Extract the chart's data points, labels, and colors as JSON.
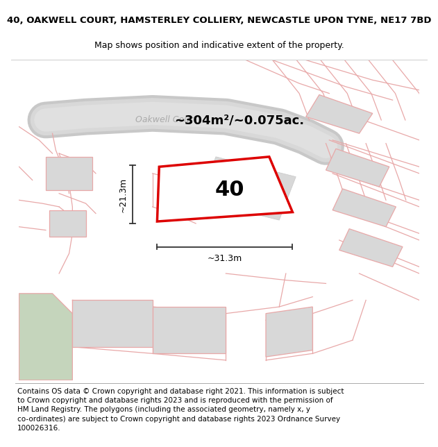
{
  "title": "40, OAKWELL COURT, HAMSTERLEY COLLIERY, NEWCASTLE UPON TYNE, NE17 7BD",
  "subtitle": "Map shows position and indicative extent of the property.",
  "area_label": "~304m²/~0.075ac.",
  "property_number": "40",
  "dim_width": "~31.3m",
  "dim_height": "~21.3m",
  "road_label": "Oakwell Court",
  "footer_text": "Contains OS data © Crown copyright and database right 2021. This information is subject to Crown copyright and database rights 2023 and is reproduced with the permission of HM Land Registry. The polygons (including the associated geometry, namely x, y co-ordinates) are subject to Crown copyright and database rights 2023 Ordnance Survey 100026316.",
  "bg_color": "#eeece8",
  "building_color": "#d8d8d8",
  "line_color": "#e8a8a8",
  "property_fill": "#ffffff",
  "property_edge": "#dd0000",
  "road_fill": "#d0d0d0",
  "road_stroke": "#c0c0c0",
  "green_color": "#c5d5bc",
  "title_fontsize": 9.5,
  "subtitle_fontsize": 9,
  "footer_fontsize": 7.5,
  "road_label_color": "#aaaaaa",
  "road_label_size": 9
}
